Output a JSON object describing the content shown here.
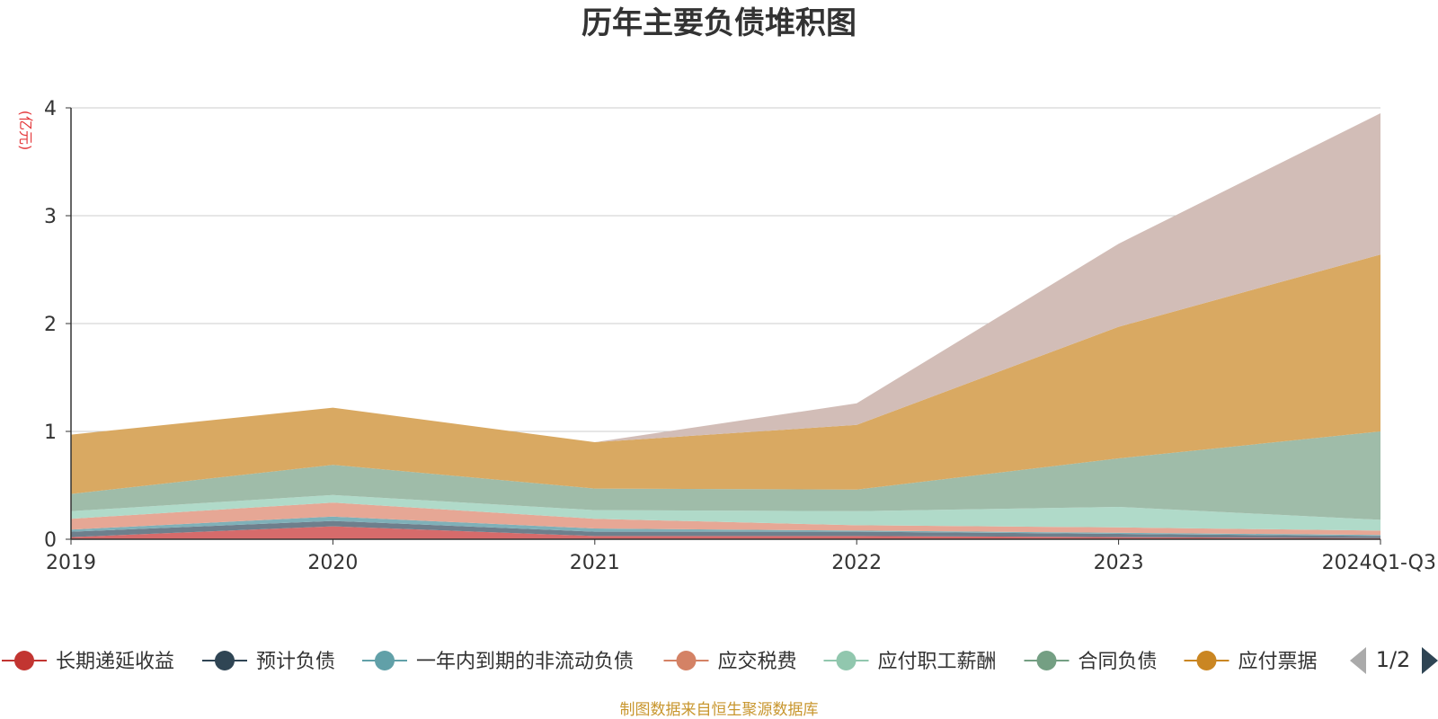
{
  "chart_data": {
    "type": "area",
    "stacked": true,
    "title": "历年主要负债堆积图",
    "unit_label": "(亿元)",
    "categories": [
      "2019",
      "2020",
      "2021",
      "2022",
      "2023",
      "2024Q1-Q3"
    ],
    "ylim": [
      0,
      4
    ],
    "yticks": [
      "0",
      "1",
      "2",
      "3",
      "4"
    ],
    "grid": true,
    "legend_position": "bottom",
    "legend_page": "1/2",
    "source": "制图数据来自恒生聚源数据库",
    "series": [
      {
        "name": "长期递延收益",
        "color": "#d66b6b",
        "legend_color": "#c23531",
        "values": [
          0.02,
          0.12,
          0.03,
          0.03,
          0.02,
          0.01
        ],
        "in_legend": true
      },
      {
        "name": "预计负债",
        "color": "#6e7f8c",
        "legend_color": "#2f4554",
        "values": [
          0.05,
          0.05,
          0.04,
          0.04,
          0.03,
          0.02
        ],
        "in_legend": true
      },
      {
        "name": "一年内到期的非流动负债",
        "color": "#7fb0b8",
        "legend_color": "#61a0a8",
        "values": [
          0.02,
          0.04,
          0.03,
          0.01,
          0.01,
          0.01
        ],
        "in_legend": true
      },
      {
        "name": "应交税费",
        "color": "#e6a795",
        "legend_color": "#d48265",
        "values": [
          0.1,
          0.13,
          0.09,
          0.05,
          0.05,
          0.04
        ],
        "in_legend": true
      },
      {
        "name": "应付职工薪酬",
        "color": "#b0dac9",
        "legend_color": "#91c7ae",
        "values": [
          0.07,
          0.07,
          0.08,
          0.13,
          0.19,
          0.1
        ],
        "in_legend": true
      },
      {
        "name": "合同负债",
        "color": "#9fbca9",
        "legend_color": "#749f83",
        "values": [
          0.16,
          0.28,
          0.2,
          0.2,
          0.45,
          0.82
        ],
        "in_legend": true
      },
      {
        "name": "应付票据",
        "color": "#d9a962",
        "legend_color": "#ca8622",
        "values": [
          0.55,
          0.53,
          0.43,
          0.6,
          1.22,
          1.64
        ],
        "in_legend": true
      },
      {
        "name": "",
        "color": "#d2bdb7",
        "values": [
          0.0,
          0.0,
          0.0,
          0.2,
          0.77,
          1.31
        ],
        "in_legend": false
      }
    ]
  }
}
